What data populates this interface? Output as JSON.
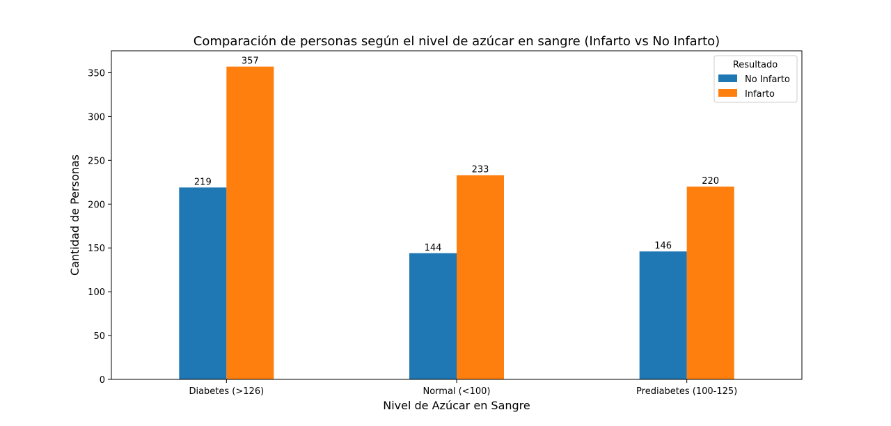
{
  "chart_data": {
    "type": "bar",
    "title": "Comparación de personas según el nivel de azúcar en sangre (Infarto vs No Infarto)",
    "xlabel": "Nivel de Azúcar en Sangre",
    "ylabel": "Cantidad de Personas",
    "categories": [
      "Diabetes (>126)",
      "Normal (<100)",
      "Prediabetes (100-125)"
    ],
    "series": [
      {
        "name": "No Infarto",
        "values": [
          219,
          144,
          146
        ],
        "color": "#1f77b4"
      },
      {
        "name": "Infarto",
        "values": [
          357,
          233,
          220
        ],
        "color": "#ff7f0e"
      }
    ],
    "ylim": [
      0,
      375
    ],
    "yticks": [
      0,
      50,
      100,
      150,
      200,
      250,
      300,
      350
    ],
    "legend": {
      "title": "Resultado",
      "position": "top-right"
    },
    "grid": false
  }
}
